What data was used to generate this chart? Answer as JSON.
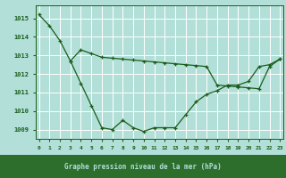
{
  "title": "Graphe pression niveau de la mer (hPa)",
  "background_color": "#b2e0d8",
  "label_bg_color": "#2d6e2d",
  "grid_color": "#ffffff",
  "line_color": "#1a5c1a",
  "label_text_color": "#b2e0d8",
  "marker_color": "#1a5c1a",
  "ylim": [
    1008.5,
    1015.7
  ],
  "yticks": [
    1009,
    1010,
    1011,
    1012,
    1013,
    1014,
    1015
  ],
  "xlim": [
    -0.3,
    23.3
  ],
  "xticks": [
    0,
    1,
    2,
    3,
    4,
    5,
    6,
    7,
    8,
    9,
    10,
    11,
    12,
    13,
    14,
    15,
    16,
    17,
    18,
    19,
    20,
    21,
    22,
    23
  ],
  "series1": [
    1015.2,
    1014.6,
    1013.8,
    1012.7,
    1011.5,
    1010.3,
    1009.1,
    1009.0,
    1009.5,
    1009.1,
    1008.9,
    1009.1,
    1009.1,
    1009.1,
    1009.8,
    1010.5,
    1010.9,
    1011.1,
    1011.4,
    1011.4,
    1011.6,
    1012.4,
    1012.5,
    1012.8
  ],
  "series2": [
    null,
    null,
    null,
    1012.7,
    1013.3,
    1013.1,
    1012.9,
    1012.85,
    1012.8,
    1012.75,
    1012.7,
    1012.65,
    1012.6,
    1012.55,
    1012.5,
    1012.45,
    1012.4,
    1011.4,
    1011.35,
    1011.3,
    1011.25,
    1011.2,
    1012.4,
    1012.8
  ],
  "ytick_fontsize": 5,
  "xtick_fontsize": 4.5,
  "xlabel_fontsize": 5.5
}
